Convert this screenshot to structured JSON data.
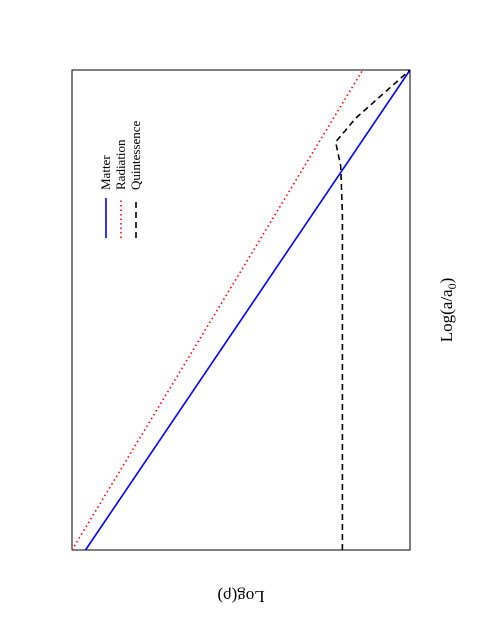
{
  "chart_data": {
    "type": "line",
    "orientation": "rotated-90-clockwise",
    "xlabel": "Log(a/a",
    "xlabel_subscript": "0",
    "xlabel_close": ")",
    "ylabel": "Log(ρ)",
    "xlim": [
      0,
      1
    ],
    "ylim": [
      0,
      1
    ],
    "grid": false,
    "legend_position": "top-right",
    "series": [
      {
        "name": "Matter",
        "color": "#0000ff",
        "style": "solid",
        "x": [
          0,
          1
        ],
        "y": [
          0.96,
          0.0
        ]
      },
      {
        "name": "Radiation",
        "color": "#ff0000",
        "style": "dotted",
        "x": [
          0,
          1
        ],
        "y": [
          1.0,
          0.14
        ]
      },
      {
        "name": "Quintessence",
        "color": "#000000",
        "style": "dashed",
        "x": [
          0,
          0.5,
          0.6,
          0.7,
          0.8,
          0.85,
          0.9,
          0.95,
          1.0
        ],
        "y": [
          0.2,
          0.2,
          0.2,
          0.2,
          0.205,
          0.22,
          0.16,
          0.08,
          0.0
        ]
      }
    ]
  }
}
